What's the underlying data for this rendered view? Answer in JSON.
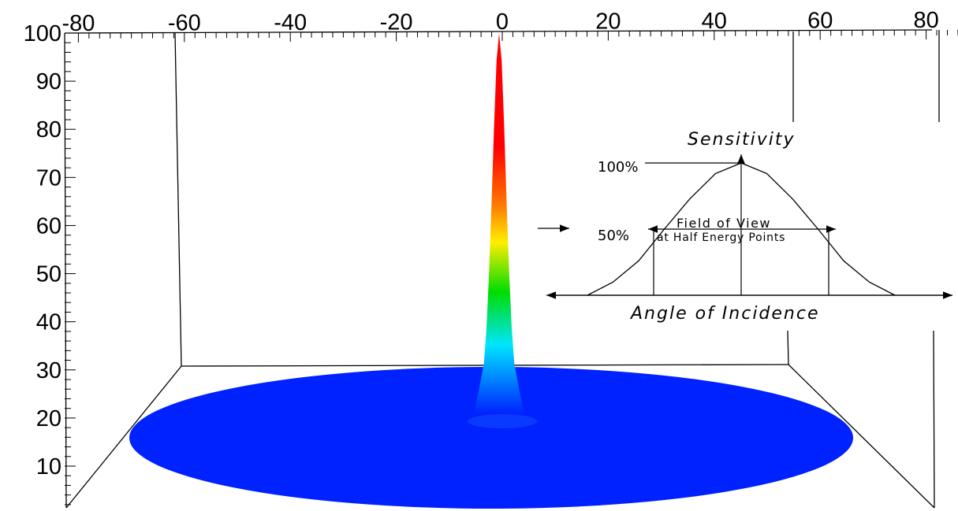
{
  "chart_data": [
    {
      "type": "surface",
      "title": "",
      "xlabel": "",
      "ylabel": "",
      "x_ticks": [
        "-80",
        "-60",
        "-40",
        "-20",
        "0",
        "20",
        "40",
        "60",
        "80"
      ],
      "z_ticks": [
        "10",
        "20",
        "30",
        "40",
        "50",
        "60",
        "70",
        "80",
        "90",
        "100"
      ],
      "xlim": [
        -90,
        90
      ],
      "zlim": [
        0,
        100
      ],
      "grid": false,
      "peak": {
        "angle": 0,
        "value": 100
      },
      "colormap": [
        "#0022ff",
        "#00e5ff",
        "#00dd00",
        "#ffee00",
        "#ff7700",
        "#ff0000"
      ],
      "surface_profile": {
        "angle": [
          0,
          1,
          2,
          3,
          4,
          5,
          6,
          8,
          10,
          90
        ],
        "value": [
          100,
          93,
          76,
          56,
          38,
          24,
          15,
          8,
          2,
          0
        ]
      }
    },
    {
      "type": "line",
      "title": "",
      "xlabel": "Angle of Incidence",
      "ylabel": "Sensitivity",
      "y_markers": [
        "100%",
        "50%"
      ],
      "annotation": [
        "Field of View",
        "at Half Energy Points"
      ],
      "series": [
        {
          "x": [
            -90,
            -75,
            -60,
            -45,
            -30,
            -15,
            0,
            15,
            30,
            45,
            60,
            75,
            90
          ],
          "y": [
            0,
            10,
            26,
            50,
            73,
            92,
            100,
            92,
            73,
            50,
            26,
            10,
            0
          ]
        }
      ]
    }
  ]
}
